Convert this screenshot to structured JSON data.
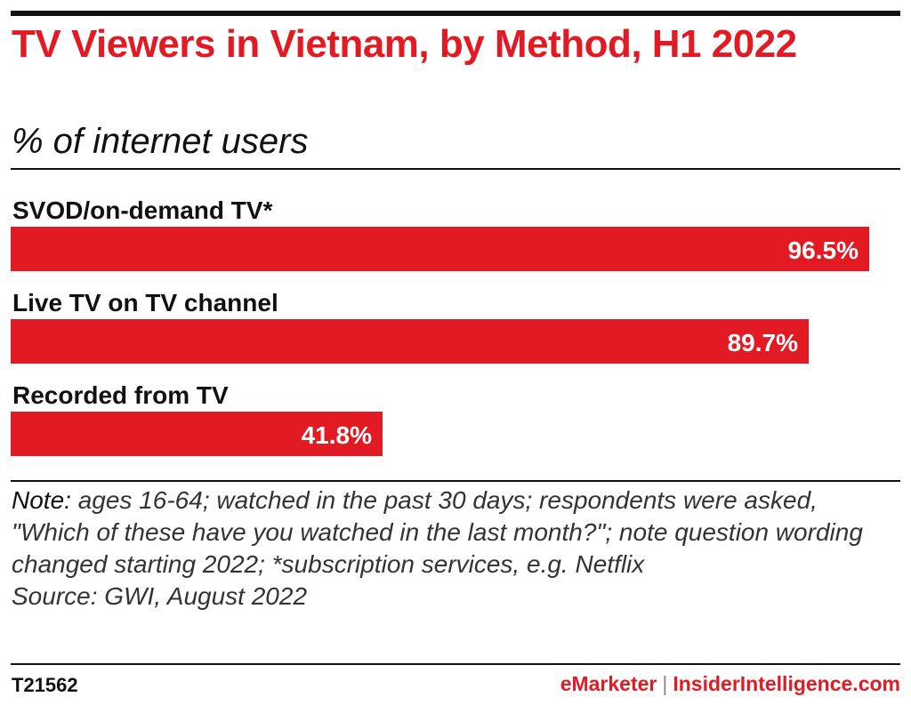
{
  "header": {
    "title": "TV Viewers in Vietnam, by Method, H1 2022",
    "subtitle": "% of internet users"
  },
  "chart_data": {
    "type": "bar",
    "orientation": "horizontal",
    "categories": [
      "SVOD/on-demand TV*",
      "Live TV on TV channel",
      "Recorded from TV"
    ],
    "values": [
      96.5,
      89.7,
      41.8
    ],
    "value_labels": [
      "96.5%",
      "89.7%",
      "41.8%"
    ],
    "unit": "%",
    "title": "TV Viewers in Vietnam, by Method, H1 2022",
    "subtitle": "% of internet users",
    "xlim": [
      0,
      100
    ],
    "grid": false,
    "legend": "none",
    "bar_color": "#e21a23"
  },
  "note": {
    "label": "Note:",
    "text": "ages 16-64; watched in the past 30 days; respondents were asked, \"Which of these have you watched in the last month?\"; note question wording changed starting 2022; *subscription services, e.g. Netflix",
    "source": "Source: GWI, August 2022"
  },
  "footer": {
    "chart_id": "T21562",
    "brand_primary": "eMarketer",
    "separator": "|",
    "brand_secondary": "InsiderIntelligence.com"
  },
  "colors": {
    "accent": "#e21a23",
    "text": "#111111"
  }
}
